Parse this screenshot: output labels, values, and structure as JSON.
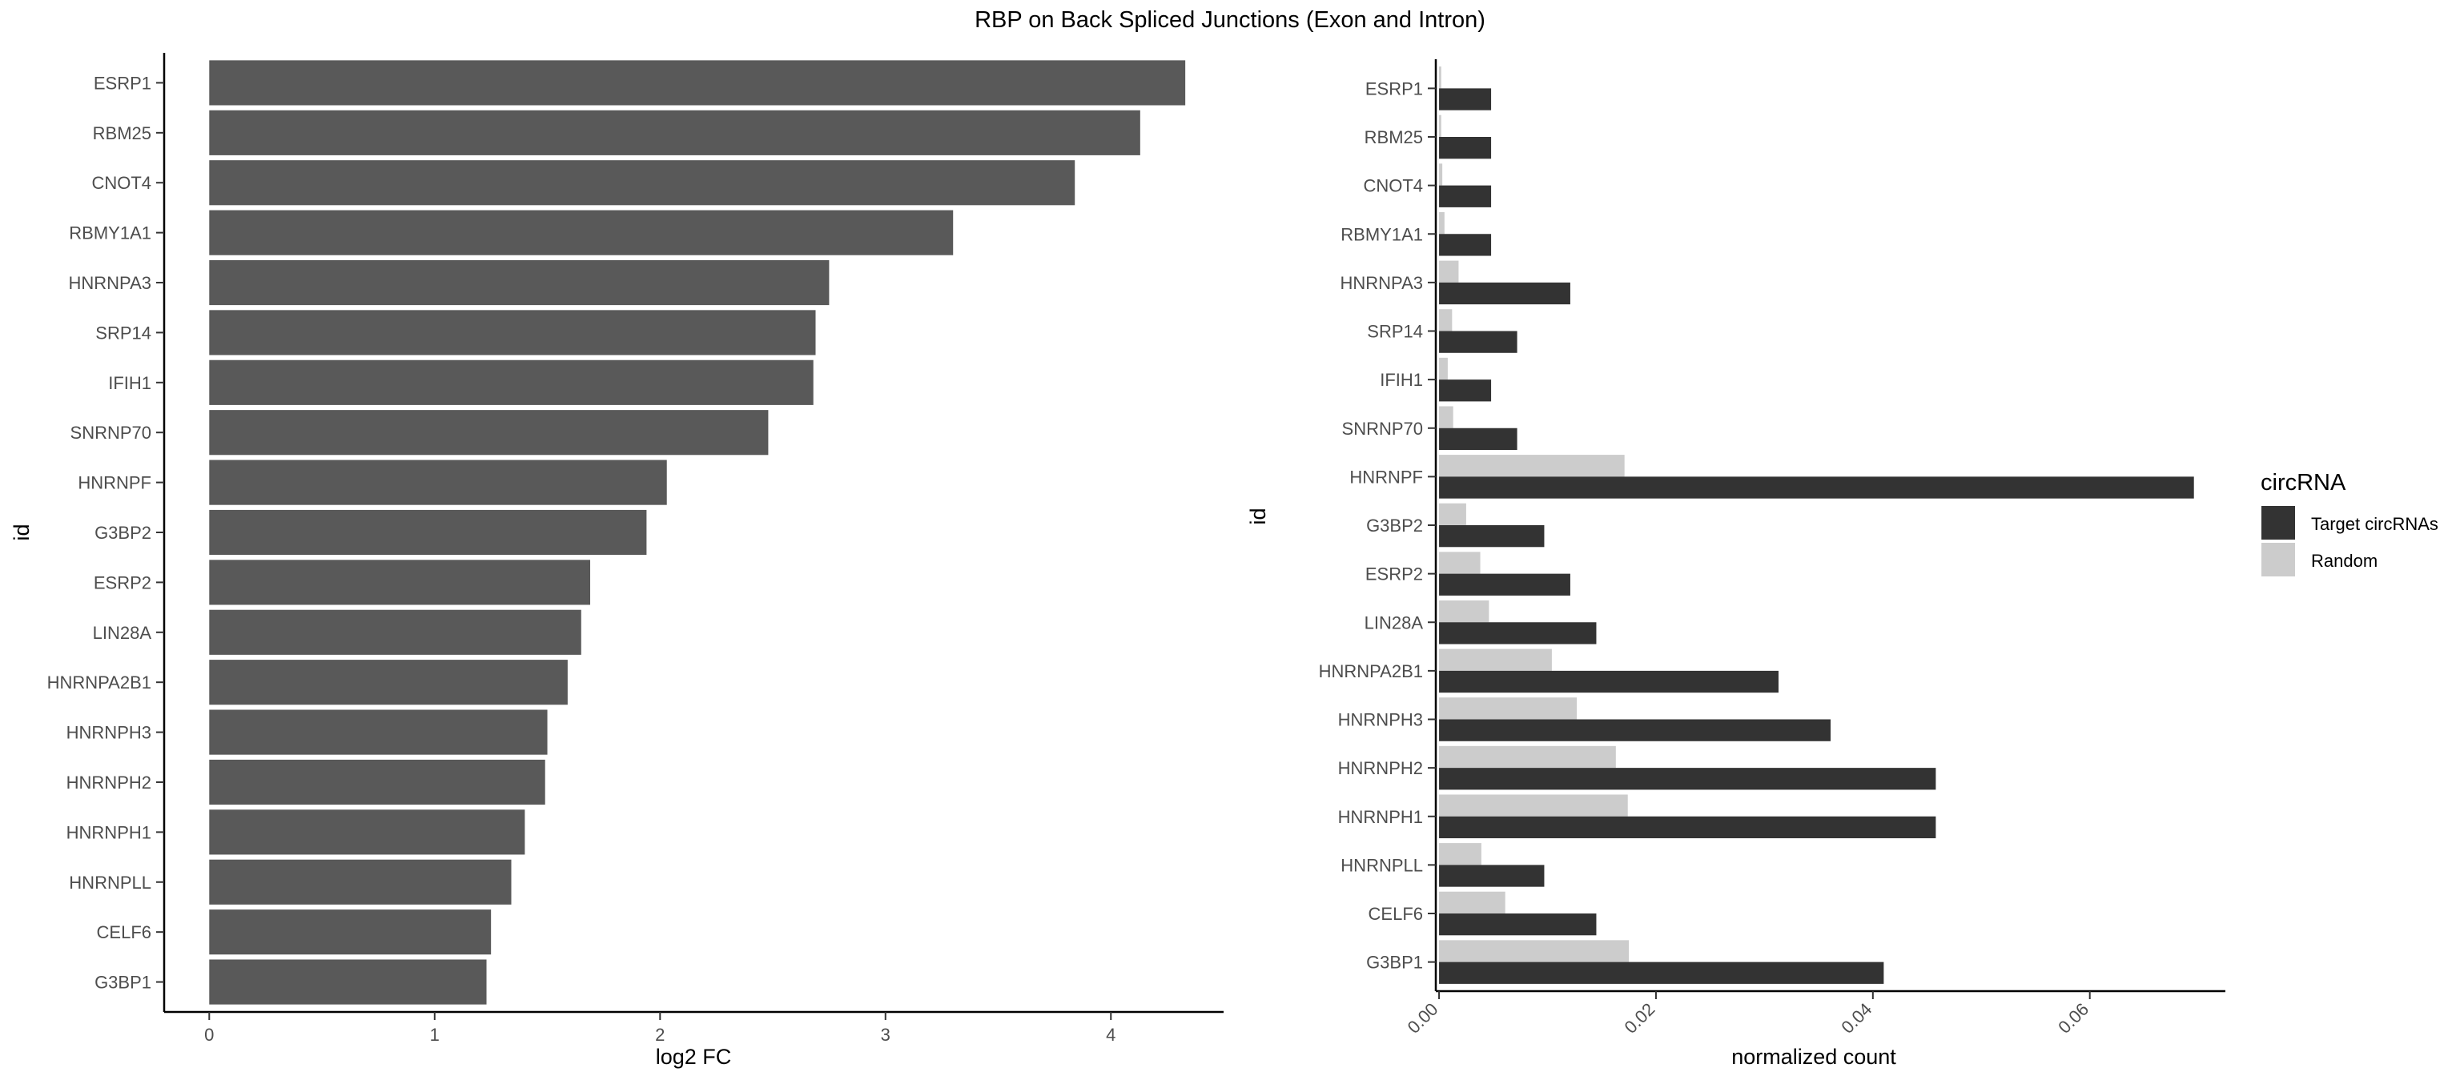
{
  "title": "RBP on Back Spliced Junctions (Exon and Intron)",
  "chart_data": [
    {
      "type": "bar",
      "orientation": "horizontal",
      "title": "",
      "xlabel": "log2 FC",
      "ylabel": "id",
      "xlim": [
        -0.2,
        4.5
      ],
      "xticks": [
        0,
        1,
        2,
        3,
        4
      ],
      "grid": false,
      "bar_color": "#595959",
      "categories": [
        "ESRP1",
        "RBM25",
        "CNOT4",
        "RBMY1A1",
        "HNRNPA3",
        "SRP14",
        "IFIH1",
        "SNRNP70",
        "HNRNPF",
        "G3BP2",
        "ESRP2",
        "LIN28A",
        "HNRNPA2B1",
        "HNRNPH3",
        "HNRNPH2",
        "HNRNPH1",
        "HNRNPLL",
        "CELF6",
        "G3BP1"
      ],
      "values": [
        4.33,
        4.13,
        3.84,
        3.3,
        2.75,
        2.69,
        2.68,
        2.48,
        2.03,
        1.94,
        1.69,
        1.65,
        1.59,
        1.5,
        1.49,
        1.4,
        1.34,
        1.25,
        1.23
      ]
    },
    {
      "type": "bar",
      "orientation": "horizontal",
      "title": "",
      "xlabel": "normalized count",
      "ylabel": "id",
      "xlim": [
        -0.0003,
        0.0725
      ],
      "xticks": [
        "0.00",
        "0.02",
        "0.04",
        "0.06"
      ],
      "grid": false,
      "legend": {
        "title": "circRNA",
        "position": "right"
      },
      "categories": [
        "ESRP1",
        "RBM25",
        "CNOT4",
        "RBMY1A1",
        "HNRNPA3",
        "SRP14",
        "IFIH1",
        "SNRNP70",
        "HNRNPF",
        "G3BP2",
        "ESRP2",
        "LIN28A",
        "HNRNPA2B1",
        "HNRNPH3",
        "HNRNPH2",
        "HNRNPH1",
        "HNRNPLL",
        "CELF6",
        "G3BP1"
      ],
      "series": [
        {
          "name": "Target circRNAs",
          "color": "#333333",
          "values": [
            0.0048,
            0.0048,
            0.0048,
            0.0048,
            0.0121,
            0.0072,
            0.0048,
            0.0072,
            0.0696,
            0.0097,
            0.0121,
            0.0145,
            0.0313,
            0.0361,
            0.0458,
            0.0458,
            0.0097,
            0.0145,
            0.041
          ]
        },
        {
          "name": "Random",
          "color": "#cccccc",
          "values": [
            0.0002,
            0.0002,
            0.0003,
            0.0005,
            0.0018,
            0.0012,
            0.0008,
            0.0013,
            0.0171,
            0.0025,
            0.0038,
            0.0046,
            0.0104,
            0.0127,
            0.0163,
            0.0174,
            0.0039,
            0.0061,
            0.0175
          ]
        }
      ]
    }
  ]
}
